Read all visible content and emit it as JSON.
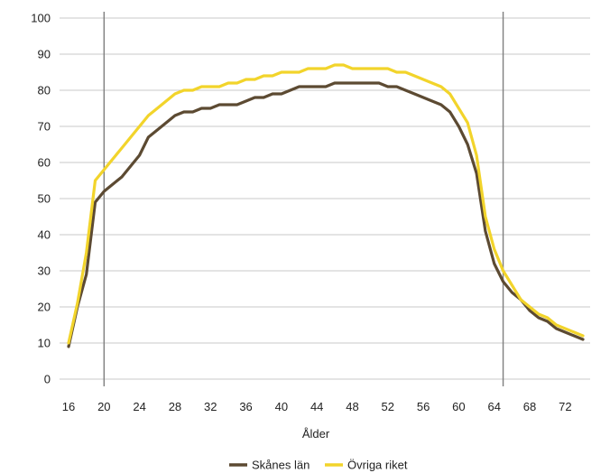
{
  "chart_data": {
    "type": "line",
    "title": "",
    "xlabel": "Ålder",
    "ylabel": "",
    "xlim": [
      16,
      74
    ],
    "ylim": [
      0,
      100
    ],
    "yticks": [
      0,
      10,
      20,
      30,
      40,
      50,
      60,
      70,
      80,
      90,
      100
    ],
    "xticks": [
      16,
      20,
      24,
      28,
      32,
      36,
      40,
      44,
      48,
      52,
      56,
      60,
      64,
      68,
      72
    ],
    "grid": true,
    "legend_position": "bottom",
    "reference_lines": [
      20,
      65
    ],
    "x": [
      16,
      17,
      18,
      19,
      20,
      21,
      22,
      23,
      24,
      25,
      26,
      27,
      28,
      29,
      30,
      31,
      32,
      33,
      34,
      35,
      36,
      37,
      38,
      39,
      40,
      41,
      42,
      43,
      44,
      45,
      46,
      47,
      48,
      49,
      50,
      51,
      52,
      53,
      54,
      55,
      56,
      57,
      58,
      59,
      60,
      61,
      62,
      63,
      64,
      65,
      66,
      67,
      68,
      69,
      70,
      71,
      72,
      73,
      74
    ],
    "series": [
      {
        "name": "Skånes län",
        "color": "#5c4a32",
        "values": [
          9,
          20,
          29,
          49,
          52,
          54,
          56,
          59,
          62,
          67,
          69,
          71,
          73,
          74,
          74,
          75,
          75,
          76,
          76,
          76,
          77,
          78,
          78,
          79,
          79,
          80,
          81,
          81,
          81,
          81,
          82,
          82,
          82,
          82,
          82,
          82,
          81,
          81,
          80,
          79,
          78,
          77,
          76,
          74,
          70,
          65,
          57,
          41,
          32,
          27,
          24,
          22,
          19,
          17,
          16,
          14,
          13,
          12,
          11
        ]
      },
      {
        "name": "Övriga riket",
        "color": "#f2d42b",
        "values": [
          10,
          21,
          35,
          55,
          58,
          61,
          64,
          67,
          70,
          73,
          75,
          77,
          79,
          80,
          80,
          81,
          81,
          81,
          82,
          82,
          83,
          83,
          84,
          84,
          85,
          85,
          85,
          86,
          86,
          86,
          87,
          87,
          86,
          86,
          86,
          86,
          86,
          85,
          85,
          84,
          83,
          82,
          81,
          79,
          75,
          71,
          62,
          45,
          36,
          30,
          26,
          22,
          20,
          18,
          17,
          15,
          14,
          13,
          12
        ]
      }
    ]
  }
}
